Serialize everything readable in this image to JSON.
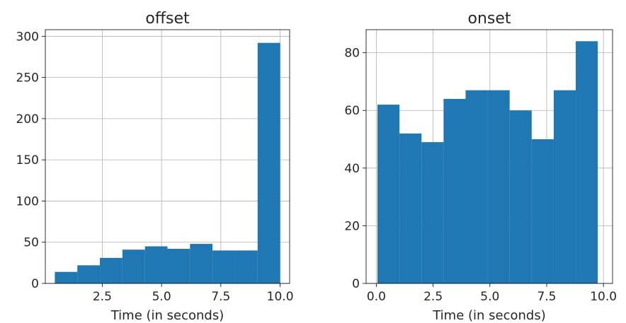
{
  "chart_data": [
    {
      "type": "histogram",
      "title": "offset",
      "xlabel": "Time (in seconds)",
      "ylabel": "",
      "grid": true,
      "bar_color": "#1f77b4",
      "xlim": [
        0.1,
        10.4
      ],
      "ylim": [
        0,
        308
      ],
      "xticks": [
        2.5,
        5.0,
        7.5,
        10.0
      ],
      "xtick_labels": [
        "2.5",
        "5.0",
        "7.5",
        "10.0"
      ],
      "yticks": [
        0,
        50,
        100,
        150,
        200,
        250,
        300
      ],
      "ytick_labels": [
        "0",
        "50",
        "100",
        "150",
        "200",
        "250",
        "300"
      ],
      "bin_edges": [
        0.5,
        1.45,
        2.4,
        3.35,
        4.3,
        5.25,
        6.2,
        7.15,
        8.1,
        9.05,
        10.0
      ],
      "values": [
        14,
        22,
        31,
        41,
        45,
        42,
        48,
        40,
        40,
        292
      ]
    },
    {
      "type": "histogram",
      "title": "onset",
      "xlabel": "Time (in seconds)",
      "ylabel": "",
      "grid": true,
      "bar_color": "#1f77b4",
      "xlim": [
        -0.45,
        10.4
      ],
      "ylim": [
        0,
        88
      ],
      "xticks": [
        0.0,
        2.5,
        5.0,
        7.5,
        10.0
      ],
      "xtick_labels": [
        "0.0",
        "2.5",
        "5.0",
        "7.5",
        "10.0"
      ],
      "yticks": [
        0,
        20,
        40,
        60,
        80
      ],
      "ytick_labels": [
        "0",
        "20",
        "40",
        "60",
        "80"
      ],
      "bin_edges": [
        0.05,
        1.02,
        1.99,
        2.96,
        3.93,
        4.9,
        5.87,
        6.84,
        7.81,
        8.78,
        9.75
      ],
      "values": [
        62,
        52,
        49,
        64,
        67,
        67,
        60,
        50,
        67,
        84
      ]
    }
  ]
}
